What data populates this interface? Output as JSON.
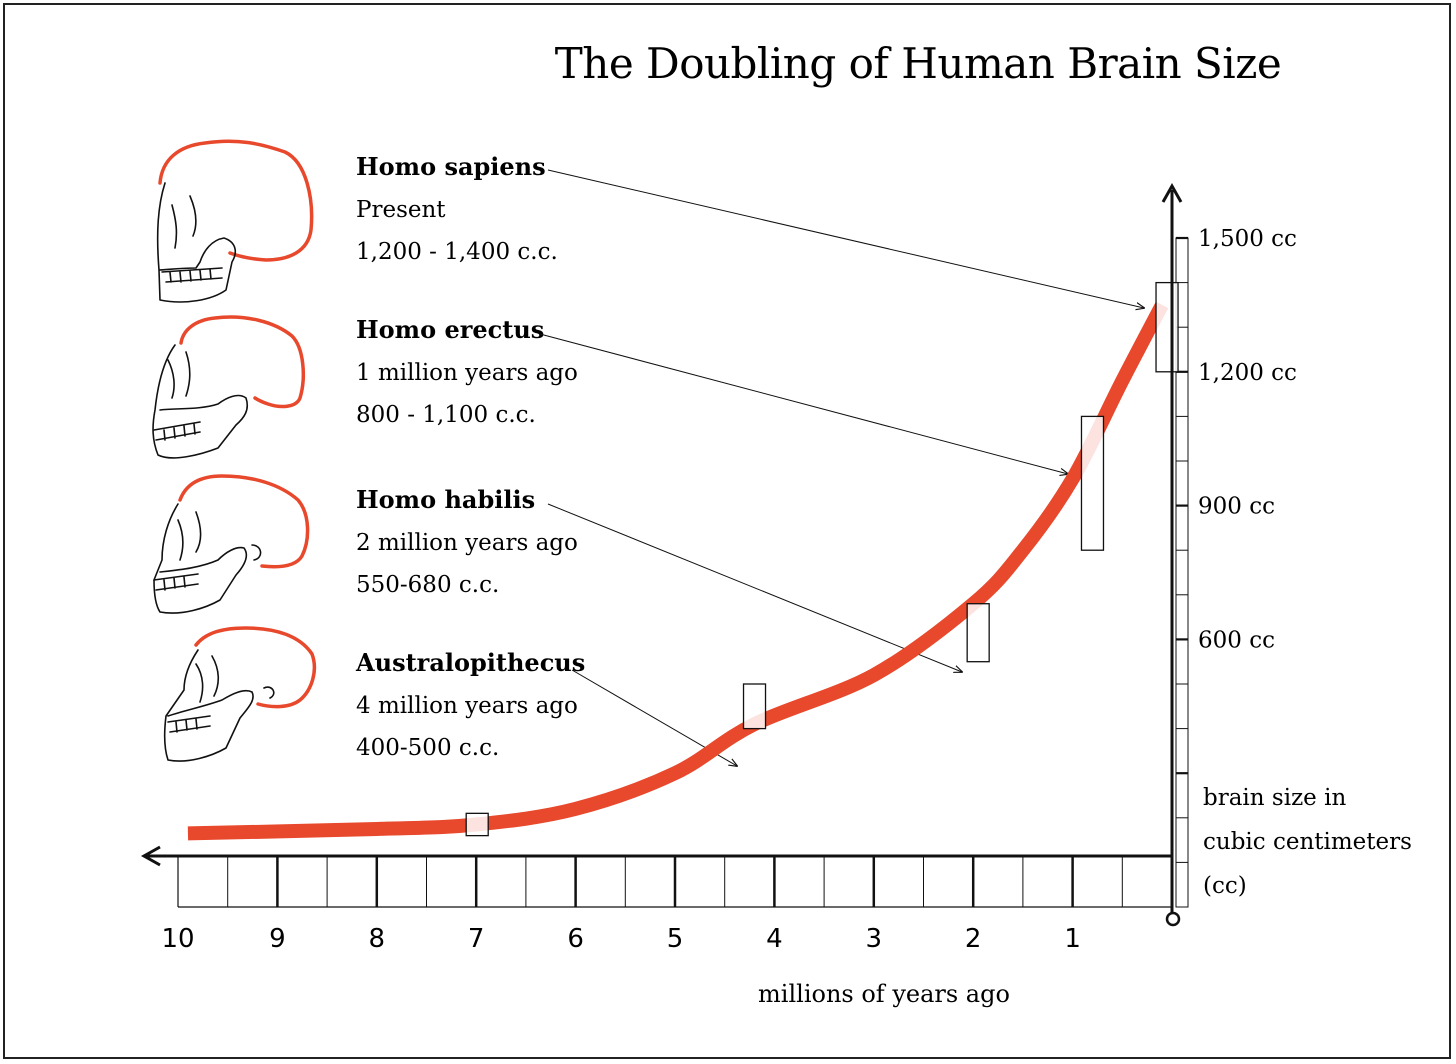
{
  "chart_data": {
    "type": "line",
    "title": "The Doubling of Human Brain Size",
    "xlabel": "millions of years ago",
    "ylabel": "brain size in cubic centimeters (cc)",
    "x_direction": "reversed",
    "xlim": [
      0,
      10
    ],
    "ylim": [
      0,
      1600
    ],
    "x_ticks": [
      10,
      9,
      8,
      7,
      6,
      5,
      4,
      3,
      2,
      1
    ],
    "y_tick_labels": [
      {
        "value": 1500,
        "label": "1,500 cc"
      },
      {
        "value": 1200,
        "label": "1,200 cc"
      },
      {
        "value": 900,
        "label": "900 cc"
      },
      {
        "value": 600,
        "label": "600 cc"
      }
    ],
    "curve_color": "#e8482c",
    "curve": {
      "x": [
        9.9,
        8,
        7,
        6,
        5,
        4.2,
        3,
        2,
        1.5,
        1,
        0.5,
        0.1
      ],
      "y": [
        165,
        175,
        185,
        220,
        300,
        410,
        520,
        680,
        800,
        960,
        1180,
        1350
      ]
    },
    "species": [
      {
        "name": "Homo sapiens",
        "era": "Present",
        "brain": "1,200 - 1,400 c.c.",
        "x": 0.05,
        "range": [
          1200,
          1400
        ]
      },
      {
        "name": "Homo erectus",
        "era": "1 million years ago",
        "brain": "800 - 1,100 c.c.",
        "x": 0.8,
        "range": [
          800,
          1100
        ]
      },
      {
        "name": "Homo habilis",
        "era": "2 million years ago",
        "brain": "550-680 c.c.",
        "x": 1.95,
        "range": [
          550,
          680
        ]
      },
      {
        "name": "Australopithecus",
        "era": "4 million years ago",
        "brain": "400-500 c.c.",
        "x": 4.2,
        "range": [
          400,
          500
        ]
      }
    ],
    "early_marker": {
      "x": 6.99,
      "range": [
        160,
        210
      ]
    }
  }
}
